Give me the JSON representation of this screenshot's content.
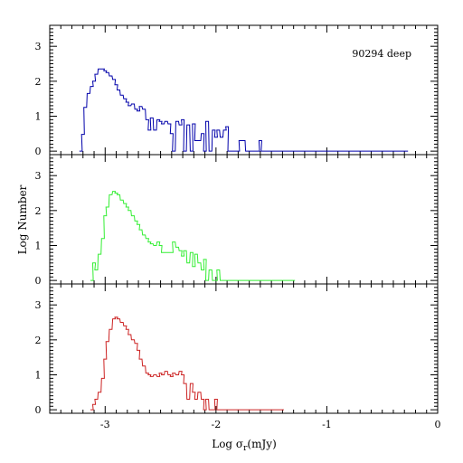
{
  "chart_data": {
    "type": "histogram",
    "xlabel_main": "Log σ",
    "xlabel_sub": "r",
    "xlabel_tail": "(mJy)",
    "ylabel": "Log Number",
    "xlim": [
      -3.5,
      0
    ],
    "ylim": [
      -0.1,
      3.6
    ],
    "x_ticks": [
      "-3",
      "-2",
      "-1",
      "0"
    ],
    "y_ticks": [
      "0",
      "1",
      "2",
      "3"
    ],
    "annotation": "90294 deep",
    "grid": false,
    "bin_width": 0.025,
    "series": [
      {
        "color": "#0000aa",
        "x": [
          -3.22,
          -3.2,
          -3.18,
          -3.15,
          -3.12,
          -3.1,
          -3.08,
          -3.05,
          -3.02,
          -3.0,
          -2.98,
          -2.95,
          -2.92,
          -2.9,
          -2.88,
          -2.85,
          -2.82,
          -2.8,
          -2.78,
          -2.75,
          -2.72,
          -2.7,
          -2.68,
          -2.65,
          -2.62,
          -2.6,
          -2.58,
          -2.55,
          -2.52,
          -2.5,
          -2.48,
          -2.45,
          -2.42,
          -2.4,
          -2.38,
          -2.35,
          -2.32,
          -2.3,
          -2.28,
          -2.25,
          -2.22,
          -2.2,
          -2.18,
          -2.15,
          -2.12,
          -2.1,
          -2.08,
          -2.05,
          -2.02,
          -2.0,
          -1.98,
          -1.95,
          -1.92,
          -1.9,
          -1.88,
          -1.85,
          -1.82,
          -1.8,
          -1.78,
          -1.75,
          -1.72,
          -1.7,
          -1.68,
          -1.65,
          -1.62,
          -1.6,
          -1.58,
          -1.55,
          -1.52,
          -1.5,
          -1.48,
          -1.45,
          -1.42,
          -1.4,
          -1.38,
          -1.35,
          -1.32,
          -1.3,
          -1.28,
          -1.25,
          -1.22,
          -1.2,
          -1.18,
          -1.15,
          -0.3,
          -0.28
        ],
        "y": [
          0.0,
          0.48,
          1.25,
          1.65,
          1.85,
          2.0,
          2.2,
          2.35,
          2.35,
          2.3,
          2.25,
          2.15,
          2.05,
          1.9,
          1.75,
          1.6,
          1.5,
          1.4,
          1.3,
          1.35,
          1.2,
          1.15,
          1.28,
          1.2,
          0.9,
          0.6,
          0.95,
          0.6,
          0.9,
          0.85,
          0.78,
          0.85,
          0.78,
          0.5,
          0.0,
          0.85,
          0.75,
          0.9,
          0.0,
          0.75,
          0.0,
          0.78,
          0.3,
          0.3,
          0.5,
          0.0,
          0.85,
          0.0,
          0.6,
          0.4,
          0.6,
          0.4,
          0.6,
          0.7,
          0.0,
          0.0,
          0.0,
          0.0,
          0.3,
          0.3,
          0.0,
          0.0,
          0.0,
          0.0,
          0.0,
          0.3,
          0.0,
          0.0,
          0.0,
          0.0,
          0.0,
          0.0,
          0.0,
          0.0,
          0.0,
          0.0,
          0.0,
          0.0,
          0.0,
          0.0,
          0.0,
          0.0,
          0.0,
          0.0,
          0.0,
          0.0
        ]
      },
      {
        "color": "#33ee33",
        "x": [
          -3.12,
          -3.1,
          -3.08,
          -3.05,
          -3.02,
          -3.0,
          -2.98,
          -2.95,
          -2.92,
          -2.9,
          -2.88,
          -2.85,
          -2.82,
          -2.8,
          -2.78,
          -2.75,
          -2.72,
          -2.7,
          -2.68,
          -2.65,
          -2.62,
          -2.6,
          -2.58,
          -2.55,
          -2.52,
          -2.5,
          -2.48,
          -2.45,
          -2.42,
          -2.4,
          -2.38,
          -2.35,
          -2.32,
          -2.3,
          -2.28,
          -2.25,
          -2.22,
          -2.2,
          -2.18,
          -2.15,
          -2.12,
          -2.1,
          -2.08,
          -2.05,
          -2.02,
          -2.0,
          -1.98,
          -1.95,
          -1.92,
          -1.9,
          -1.88,
          -1.85,
          -1.82,
          -1.8,
          -1.78,
          -1.75,
          -1.72,
          -1.7,
          -1.68,
          -1.65,
          -1.62,
          -1.6,
          -1.58,
          -1.55,
          -1.52,
          -1.5,
          -1.48,
          -1.45,
          -1.42,
          -1.4,
          -1.38,
          -1.35,
          -1.32,
          -1.3
        ],
        "y": [
          0.0,
          0.5,
          0.3,
          0.75,
          1.2,
          1.85,
          2.1,
          2.45,
          2.55,
          2.5,
          2.45,
          2.3,
          2.2,
          2.1,
          2.0,
          1.85,
          1.7,
          1.6,
          1.45,
          1.3,
          1.2,
          1.1,
          1.05,
          1.0,
          1.1,
          1.0,
          0.8,
          0.8,
          0.8,
          0.8,
          1.1,
          0.95,
          0.85,
          0.7,
          0.85,
          0.5,
          0.8,
          0.4,
          0.75,
          0.5,
          0.3,
          0.6,
          0.0,
          0.3,
          0.0,
          0.0,
          0.3,
          0.0,
          0.0,
          0.0,
          0.0,
          0.0,
          0.0,
          0.0,
          0.0,
          0.0,
          0.0,
          0.0,
          0.0,
          0.0,
          0.0,
          0.0,
          0.0,
          0.0,
          0.0,
          0.0,
          0.0,
          0.0,
          0.0,
          0.0,
          0.0,
          0.0,
          0.0,
          0.0
        ]
      },
      {
        "color": "#cc2222",
        "x": [
          -3.12,
          -3.1,
          -3.08,
          -3.05,
          -3.02,
          -3.0,
          -2.98,
          -2.95,
          -2.92,
          -2.9,
          -2.88,
          -2.85,
          -2.82,
          -2.8,
          -2.78,
          -2.75,
          -2.72,
          -2.7,
          -2.68,
          -2.65,
          -2.62,
          -2.6,
          -2.58,
          -2.55,
          -2.52,
          -2.5,
          -2.48,
          -2.45,
          -2.42,
          -2.4,
          -2.38,
          -2.35,
          -2.32,
          -2.3,
          -2.28,
          -2.25,
          -2.22,
          -2.2,
          -2.18,
          -2.15,
          -2.12,
          -2.1,
          -2.08,
          -2.05,
          -2.02,
          -2.0,
          -1.98,
          -1.95,
          -1.92,
          -1.9,
          -1.88,
          -1.85,
          -1.82,
          -1.8,
          -1.78,
          -1.75,
          -1.72,
          -1.7,
          -1.68,
          -1.65,
          -1.62,
          -1.6,
          -1.58,
          -1.55,
          -1.52,
          -1.5,
          -1.48,
          -1.45,
          -1.42,
          -1.4
        ],
        "y": [
          0.0,
          0.15,
          0.3,
          0.5,
          0.9,
          1.45,
          1.95,
          2.3,
          2.6,
          2.65,
          2.6,
          2.5,
          2.4,
          2.3,
          2.15,
          2.0,
          1.9,
          1.7,
          1.45,
          1.25,
          1.05,
          1.0,
          0.95,
          1.0,
          0.95,
          1.05,
          1.0,
          1.1,
          1.0,
          0.95,
          1.05,
          1.0,
          1.1,
          1.0,
          0.75,
          0.3,
          0.75,
          0.5,
          0.3,
          0.5,
          0.3,
          0.0,
          0.3,
          0.0,
          0.0,
          0.3,
          0.0,
          0.0,
          0.0,
          0.0,
          0.0,
          0.0,
          0.0,
          0.0,
          0.0,
          0.0,
          0.0,
          0.0,
          0.0,
          0.0,
          0.0,
          0.0,
          0.0,
          0.0,
          0.0,
          0.0,
          0.0,
          0.0,
          0.0,
          0.0
        ]
      }
    ]
  }
}
